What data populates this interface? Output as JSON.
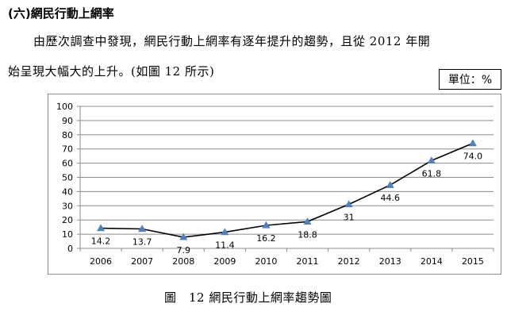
{
  "heading": "(六)網民行動上網率",
  "paragraph": {
    "line1": "由歷次調查中發現，網民行動上網率有逐年提升的趨勢，且從 2012 年開",
    "line2": "始呈現大幅大的上升。(如圖 12 所示)"
  },
  "unit_label": "單位：%",
  "caption": "圖　12  網民行動上網率趨勢圖",
  "colors": {
    "line": "#000000",
    "marker": "#4f81bd",
    "grid": "#8c8c8c"
  },
  "chart_data": {
    "type": "line",
    "title": "",
    "xlabel": "",
    "ylabel": "",
    "categories": [
      "2006",
      "2007",
      "2008",
      "2009",
      "2010",
      "2011",
      "2012",
      "2013",
      "2014",
      "2015"
    ],
    "series": [
      {
        "values": [
          14.2,
          13.7,
          7.9,
          11.4,
          16.2,
          18.8,
          31,
          44.6,
          61.8,
          74.0
        ]
      }
    ],
    "data_labels": [
      "14.2",
      "13.7",
      "7.9",
      "11.4",
      "16.2",
      "18.8",
      "31",
      "44.6",
      "61.8",
      "74.0"
    ],
    "ylim": [
      0,
      100
    ],
    "yticks": [
      0,
      10,
      20,
      30,
      40,
      50,
      60,
      70,
      80,
      90,
      100
    ],
    "grid": true,
    "legend": "none",
    "marker": "triangle"
  }
}
